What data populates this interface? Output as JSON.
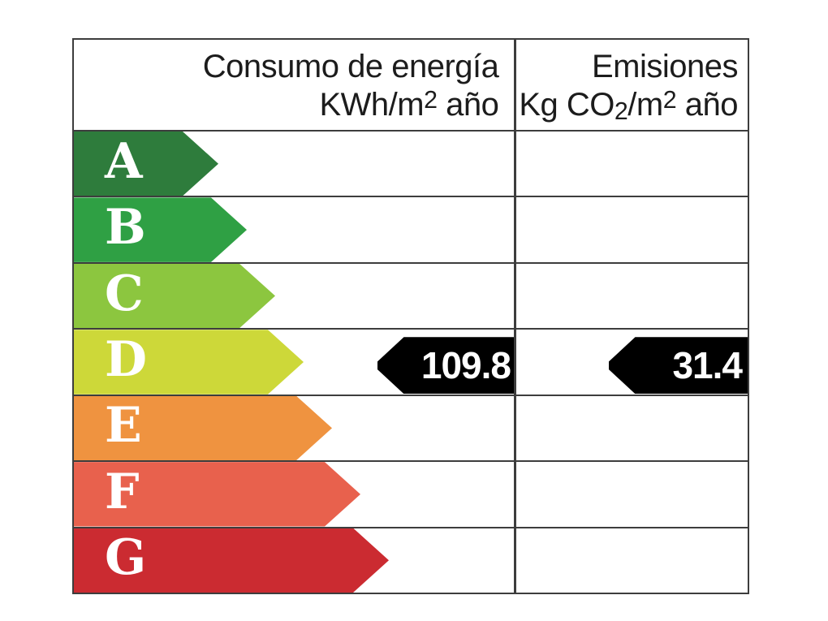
{
  "header": {
    "consumption": {
      "line1": "Consumo de energía",
      "unit_prefix": "KWh/m",
      "unit_sup": "2",
      "unit_suffix": " año"
    },
    "emissions": {
      "line1": "Emisiones",
      "unit_prefix": "Kg CO",
      "unit_sub": "2",
      "unit_mid": "/m",
      "unit_sup": "2",
      "unit_suffix": " año"
    }
  },
  "ratings": [
    {
      "letter": "A",
      "color": "#2e7c3c"
    },
    {
      "letter": "B",
      "color": "#2fa044"
    },
    {
      "letter": "C",
      "color": "#8cc63f"
    },
    {
      "letter": "D",
      "color": "#cdd839"
    },
    {
      "letter": "E",
      "color": "#ef9340"
    },
    {
      "letter": "F",
      "color": "#e8614d"
    },
    {
      "letter": "G",
      "color": "#cb2b31"
    }
  ],
  "indicators": {
    "rating_row": "D",
    "consumption_value": "109.8",
    "emissions_value": "31.4",
    "arrow_color": "#000000",
    "text_color": "#ffffff"
  },
  "border_color": "#3d3d3d",
  "chart_data": {
    "type": "table",
    "title": "Energy efficiency rating scale",
    "columns": [
      "Consumo de energía KWh/m2 año",
      "Emisiones Kg CO2/m2 año"
    ],
    "categories": [
      "A",
      "B",
      "C",
      "D",
      "E",
      "F",
      "G"
    ],
    "rating": "D",
    "values": {
      "consumo_kwh_m2_ano": 109.8,
      "emisiones_kg_co2_m2_ano": 31.4
    },
    "legend_position": "none",
    "grid": true
  }
}
